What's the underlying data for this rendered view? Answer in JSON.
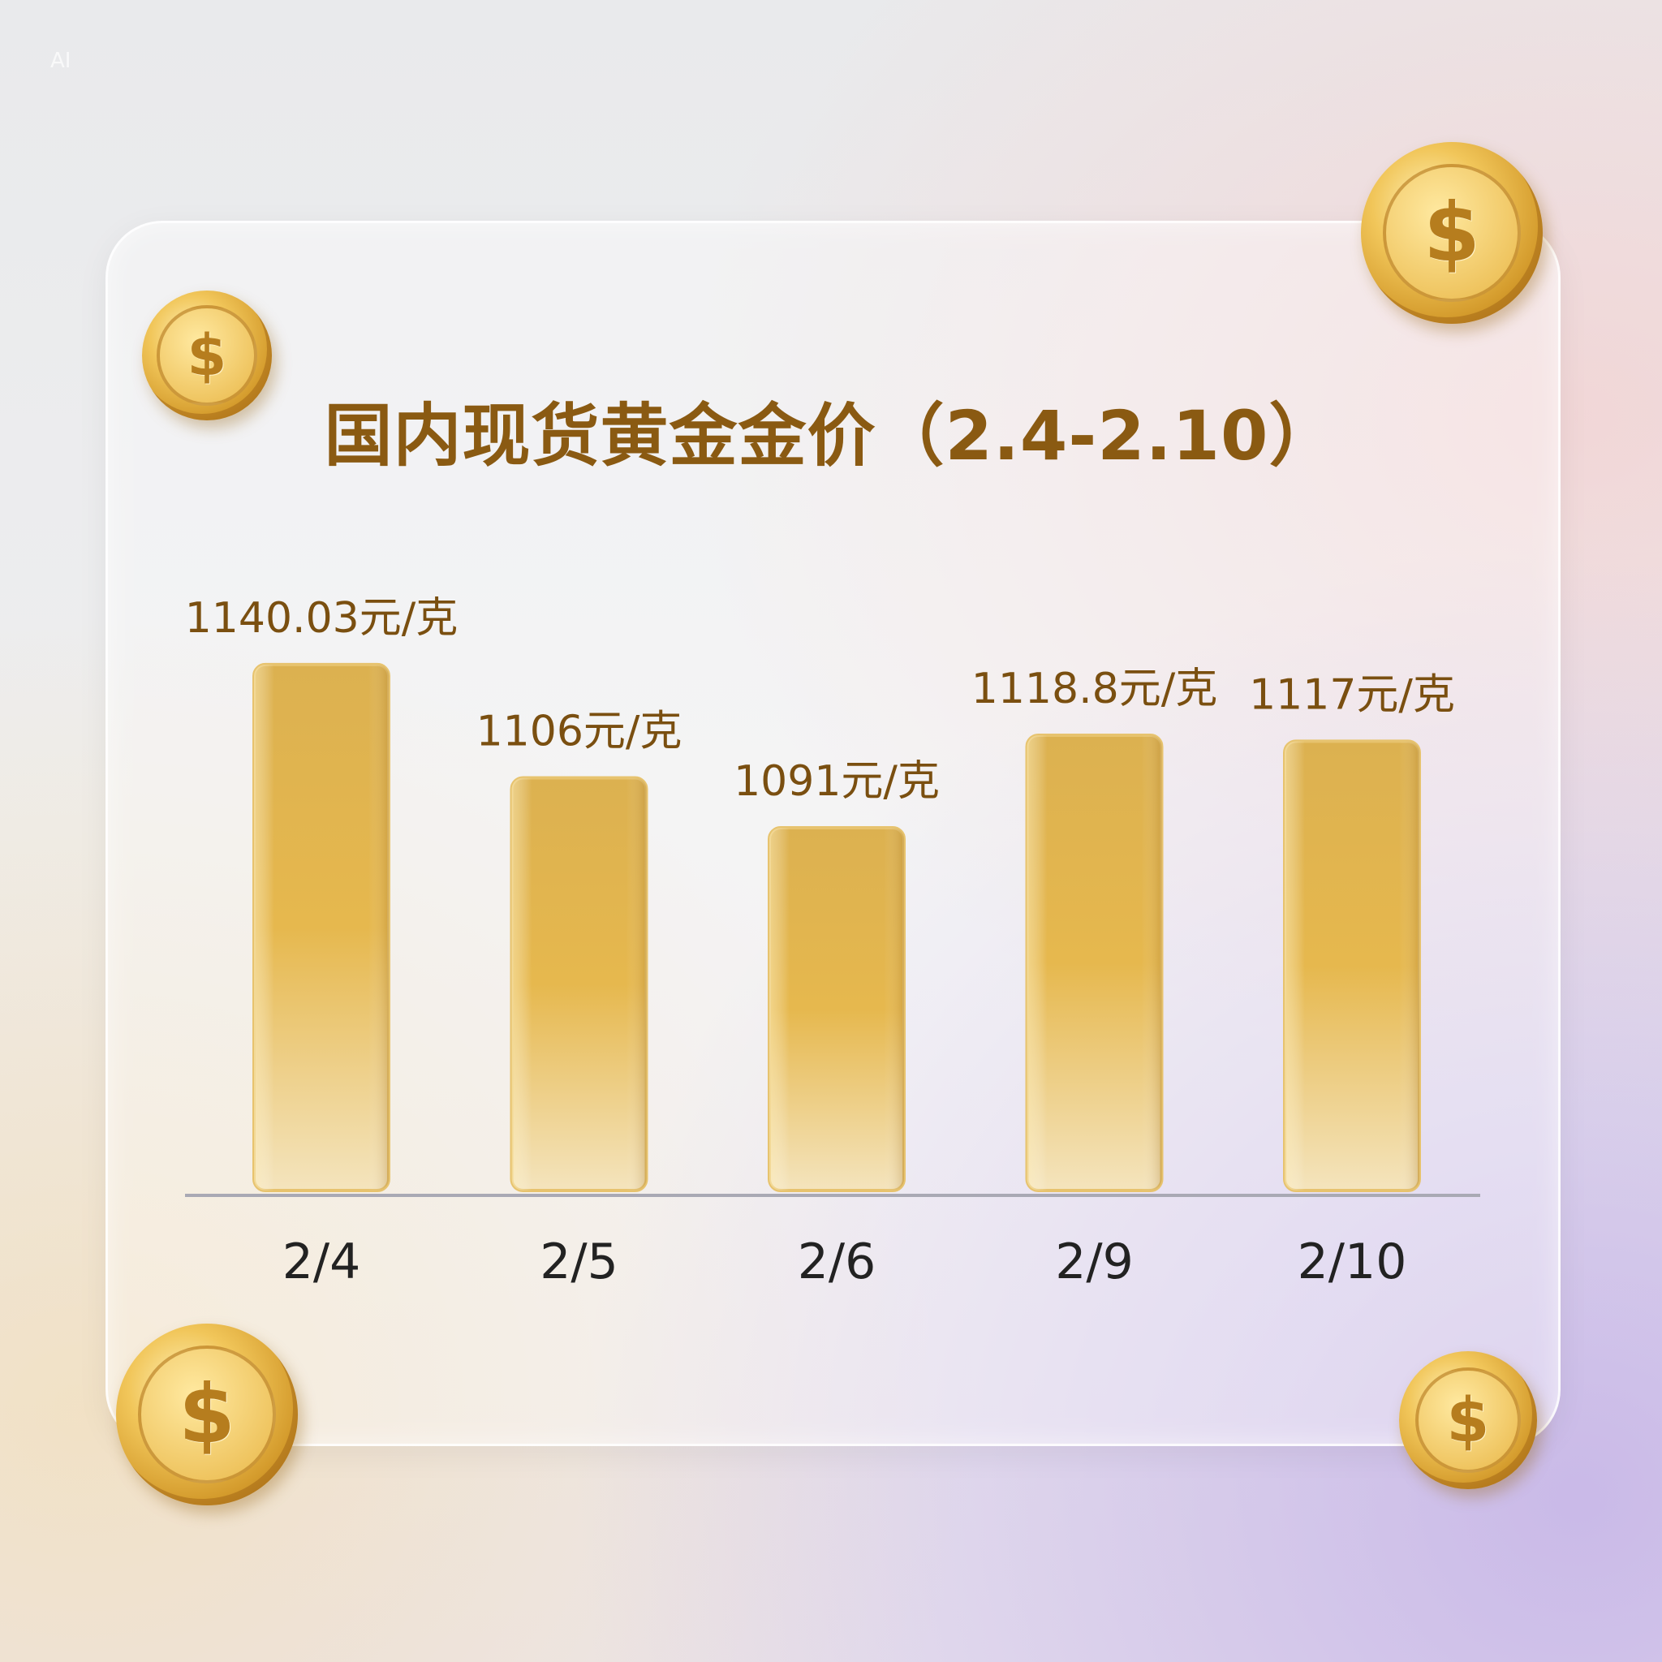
{
  "watermark": "AI",
  "chart_data": {
    "type": "bar",
    "title": "国内现货黄金金价（2.4-2.10）",
    "categories": [
      "2/4",
      "2/5",
      "2/6",
      "2/9",
      "2/10"
    ],
    "values": [
      1140.03,
      1106,
      1091,
      1118.8,
      1117
    ],
    "data_labels": [
      "1140.03元/克",
      "1106元/克",
      "1091元/克",
      "1118.8元/克",
      "1117元/克"
    ],
    "unit": "元/克",
    "xlabel": "",
    "ylabel": "",
    "ylim": [
      982,
      1160
    ],
    "grid": false,
    "bar_color": "#e2b44e",
    "label_color": "#7a4f10"
  },
  "decorations": {
    "coin_symbol": "$",
    "coin_icon": "dollar-coin-icon"
  }
}
